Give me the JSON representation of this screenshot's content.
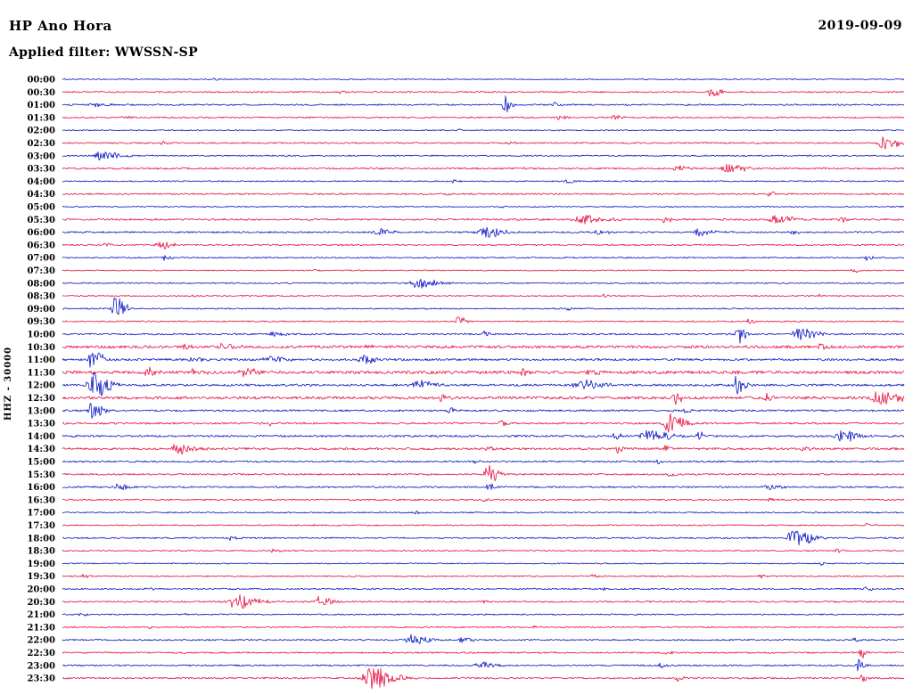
{
  "header": {
    "station": "HP Ano Hora",
    "date": "2019-09-09",
    "filter_label": "Applied filter: WWSSN-SP"
  },
  "axis": {
    "left_label": "HHZ - 30000"
  },
  "chart_data": {
    "type": "line",
    "kind": "helicorder-seismogram",
    "station": "HP Ano Hora",
    "date": "2019-09-09",
    "filter": "WWSSN-SP",
    "channel_scale_label": "HHZ - 30000",
    "row_interval_minutes": 30,
    "trace_color_even": "#0812c6",
    "trace_color_odd": "#e60e3e",
    "event_format": [
      "t_fraction_of_row",
      "amplitude_px",
      "envelope_width_fraction"
    ],
    "rows": [
      {
        "label": "00:00",
        "noise": 0.6,
        "events": [
          [
            0.18,
            1.5,
            0.004
          ]
        ]
      },
      {
        "label": "00:30",
        "noise": 0.8,
        "events": [
          [
            0.77,
            5,
            0.006
          ],
          [
            0.33,
            1.5,
            0.004
          ]
        ]
      },
      {
        "label": "01:00",
        "noise": 0.8,
        "events": [
          [
            0.525,
            11,
            0.0035
          ],
          [
            0.04,
            2,
            0.012
          ],
          [
            0.585,
            2.5,
            0.004
          ]
        ]
      },
      {
        "label": "01:30",
        "noise": 0.8,
        "events": [
          [
            0.59,
            2.5,
            0.005
          ],
          [
            0.655,
            3,
            0.005
          ],
          [
            0.07,
            1.5,
            0.006
          ]
        ]
      },
      {
        "label": "02:00",
        "noise": 0.6,
        "events": [
          [
            0.47,
            1.2,
            0.004
          ]
        ]
      },
      {
        "label": "02:30",
        "noise": 0.8,
        "events": [
          [
            0.975,
            7,
            0.009
          ],
          [
            0.12,
            2,
            0.006
          ],
          [
            0.53,
            1.5,
            0.004
          ]
        ]
      },
      {
        "label": "03:00",
        "noise": 0.7,
        "events": [
          [
            0.045,
            6,
            0.011
          ]
        ]
      },
      {
        "label": "03:30",
        "noise": 0.9,
        "events": [
          [
            0.73,
            4,
            0.006
          ],
          [
            0.79,
            5,
            0.011
          ],
          [
            0.55,
            1.5,
            0.004
          ]
        ]
      },
      {
        "label": "04:00",
        "noise": 0.7,
        "events": [
          [
            0.465,
            2.5,
            0.004
          ],
          [
            0.6,
            2.5,
            0.004
          ]
        ]
      },
      {
        "label": "04:30",
        "noise": 0.8,
        "events": [
          [
            0.455,
            3,
            0.003
          ],
          [
            0.84,
            3.5,
            0.003
          ]
        ]
      },
      {
        "label": "05:00",
        "noise": 0.6,
        "events": [
          [
            0.52,
            1.3,
            0.003
          ]
        ]
      },
      {
        "label": "05:30",
        "noise": 1.0,
        "events": [
          [
            0.615,
            5,
            0.013
          ],
          [
            0.715,
            3,
            0.005
          ],
          [
            0.845,
            5,
            0.011
          ],
          [
            0.925,
            3,
            0.004
          ]
        ]
      },
      {
        "label": "06:00",
        "noise": 0.9,
        "events": [
          [
            0.375,
            4,
            0.008
          ],
          [
            0.5,
            7,
            0.011
          ],
          [
            0.635,
            3,
            0.006
          ],
          [
            0.755,
            5,
            0.008
          ],
          [
            0.865,
            2.5,
            0.005
          ]
        ]
      },
      {
        "label": "06:30",
        "noise": 0.8,
        "events": [
          [
            0.115,
            5,
            0.007
          ],
          [
            0.05,
            2,
            0.005
          ]
        ]
      },
      {
        "label": "07:00",
        "noise": 0.7,
        "events": [
          [
            0.12,
            3,
            0.004
          ],
          [
            0.955,
            5,
            0.0035
          ]
        ]
      },
      {
        "label": "07:30",
        "noise": 0.6,
        "events": [
          [
            0.94,
            2.5,
            0.004
          ],
          [
            0.3,
            1.3,
            0.004
          ]
        ]
      },
      {
        "label": "08:00",
        "noise": 0.7,
        "events": [
          [
            0.42,
            6,
            0.012
          ]
        ]
      },
      {
        "label": "08:30",
        "noise": 0.7,
        "events": [
          [
            0.15,
            2,
            0.004
          ],
          [
            0.64,
            2,
            0.004
          ],
          [
            0.9,
            2,
            0.003
          ]
        ]
      },
      {
        "label": "09:00",
        "noise": 0.7,
        "events": [
          [
            0.062,
            13,
            0.006
          ],
          [
            0.6,
            2,
            0.004
          ]
        ]
      },
      {
        "label": "09:30",
        "noise": 0.7,
        "events": [
          [
            0.47,
            6,
            0.0045
          ],
          [
            0.815,
            4,
            0.003
          ]
        ]
      },
      {
        "label": "10:00",
        "noise": 0.9,
        "events": [
          [
            0.8,
            13,
            0.0045
          ],
          [
            0.875,
            7,
            0.01
          ],
          [
            0.25,
            3,
            0.006
          ],
          [
            0.5,
            4,
            0.004
          ]
        ]
      },
      {
        "label": "10:30",
        "noise": 1.5,
        "events": [
          [
            0.145,
            3.5,
            0.006
          ],
          [
            0.19,
            4,
            0.008
          ],
          [
            0.36,
            2.5,
            0.005
          ],
          [
            0.9,
            2.5,
            0.004
          ]
        ]
      },
      {
        "label": "11:00",
        "noise": 1.2,
        "events": [
          [
            0.035,
            12,
            0.006
          ],
          [
            0.355,
            8,
            0.006
          ],
          [
            0.245,
            4.5,
            0.01
          ],
          [
            0.155,
            3.5,
            0.006
          ]
        ]
      },
      {
        "label": "11:30",
        "noise": 1.6,
        "events": [
          [
            0.1,
            5,
            0.006
          ],
          [
            0.155,
            4,
            0.006
          ],
          [
            0.215,
            4.5,
            0.008
          ],
          [
            0.545,
            4.5,
            0.0035
          ],
          [
            0.625,
            3.5,
            0.006
          ],
          [
            0.8,
            3,
            0.004
          ]
        ]
      },
      {
        "label": "12:00",
        "noise": 1.2,
        "events": [
          [
            0.035,
            15,
            0.009
          ],
          [
            0.42,
            6,
            0.01
          ],
          [
            0.615,
            6,
            0.012
          ],
          [
            0.8,
            12,
            0.0045
          ]
        ]
      },
      {
        "label": "12:30",
        "noise": 1.5,
        "events": [
          [
            0.725,
            8,
            0.005
          ],
          [
            0.835,
            5,
            0.004
          ],
          [
            0.97,
            8,
            0.012
          ],
          [
            0.45,
            3,
            0.005
          ]
        ]
      },
      {
        "label": "13:00",
        "noise": 1.0,
        "events": [
          [
            0.035,
            10,
            0.006
          ],
          [
            0.46,
            3,
            0.005
          ],
          [
            0.74,
            3,
            0.004
          ]
        ]
      },
      {
        "label": "13:30",
        "noise": 1.0,
        "events": [
          [
            0.72,
            12,
            0.008
          ],
          [
            0.52,
            3,
            0.005
          ],
          [
            0.245,
            2.5,
            0.004
          ]
        ]
      },
      {
        "label": "14:00",
        "noise": 1.1,
        "events": [
          [
            0.695,
            7,
            0.012
          ],
          [
            0.925,
            7,
            0.009
          ],
          [
            0.755,
            5,
            0.004
          ],
          [
            0.655,
            4,
            0.005
          ]
        ]
      },
      {
        "label": "14:30",
        "noise": 1.2,
        "events": [
          [
            0.135,
            6,
            0.01
          ],
          [
            0.505,
            4,
            0.003
          ],
          [
            0.715,
            5,
            0.003
          ],
          [
            0.66,
            4,
            0.003
          ],
          [
            0.88,
            3,
            0.004
          ]
        ]
      },
      {
        "label": "15:00",
        "noise": 0.9,
        "events": [
          [
            0.485,
            3,
            0.004
          ],
          [
            0.705,
            3.5,
            0.003
          ]
        ]
      },
      {
        "label": "15:30",
        "noise": 0.9,
        "events": [
          [
            0.505,
            11,
            0.006
          ],
          [
            0.72,
            3,
            0.004
          ]
        ]
      },
      {
        "label": "16:00",
        "noise": 0.9,
        "events": [
          [
            0.065,
            4,
            0.006
          ],
          [
            0.505,
            4.5,
            0.0045
          ],
          [
            0.835,
            3,
            0.008
          ]
        ]
      },
      {
        "label": "16:30",
        "noise": 0.8,
        "events": [
          [
            0.5,
            2,
            0.004
          ],
          [
            0.84,
            2,
            0.004
          ]
        ]
      },
      {
        "label": "17:00",
        "noise": 0.7,
        "events": [
          [
            0.42,
            1.5,
            0.003
          ]
        ]
      },
      {
        "label": "17:30",
        "noise": 0.7,
        "events": [
          [
            0.3,
            1.5,
            0.003
          ],
          [
            0.955,
            2,
            0.003
          ]
        ]
      },
      {
        "label": "18:00",
        "noise": 0.8,
        "events": [
          [
            0.868,
            11,
            0.01
          ],
          [
            0.2,
            2.5,
            0.004
          ]
        ]
      },
      {
        "label": "18:30",
        "noise": 0.7,
        "events": [
          [
            0.92,
            2.5,
            0.003
          ],
          [
            0.25,
            1.5,
            0.004
          ]
        ]
      },
      {
        "label": "19:00",
        "noise": 0.6,
        "events": [
          [
            0.9,
            2,
            0.003
          ]
        ]
      },
      {
        "label": "19:30",
        "noise": 0.7,
        "events": [
          [
            0.025,
            2,
            0.004
          ],
          [
            0.83,
            3,
            0.005
          ],
          [
            0.63,
            2,
            0.004
          ]
        ]
      },
      {
        "label": "20:00",
        "noise": 0.8,
        "events": [
          [
            0.1,
            2,
            0.004
          ],
          [
            0.64,
            2.5,
            0.004
          ],
          [
            0.955,
            3.5,
            0.003
          ]
        ]
      },
      {
        "label": "20:30",
        "noise": 0.9,
        "events": [
          [
            0.205,
            9,
            0.012
          ],
          [
            0.305,
            8,
            0.006
          ],
          [
            0.5,
            2,
            0.004
          ]
        ]
      },
      {
        "label": "21:00",
        "noise": 0.7,
        "events": [
          [
            0.02,
            2,
            0.004
          ],
          [
            0.14,
            1.5,
            0.004
          ]
        ]
      },
      {
        "label": "21:30",
        "noise": 0.7,
        "events": [
          [
            0.1,
            1.5,
            0.004
          ],
          [
            0.56,
            1.5,
            0.004
          ]
        ]
      },
      {
        "label": "22:00",
        "noise": 0.8,
        "events": [
          [
            0.415,
            6,
            0.01
          ],
          [
            0.475,
            3.5,
            0.006
          ],
          [
            0.94,
            2.5,
            0.003
          ]
        ]
      },
      {
        "label": "22:30",
        "noise": 0.8,
        "events": [
          [
            0.715,
            2.5,
            0.004
          ],
          [
            0.948,
            9,
            0.003
          ]
        ]
      },
      {
        "label": "23:00",
        "noise": 0.8,
        "events": [
          [
            0.495,
            5,
            0.008
          ],
          [
            0.71,
            3,
            0.004
          ],
          [
            0.945,
            8,
            0.0035
          ]
        ]
      },
      {
        "label": "23:30",
        "noise": 0.9,
        "events": [
          [
            0.365,
            12,
            0.013
          ],
          [
            0.73,
            3,
            0.004
          ],
          [
            0.95,
            4,
            0.003
          ]
        ]
      }
    ]
  }
}
